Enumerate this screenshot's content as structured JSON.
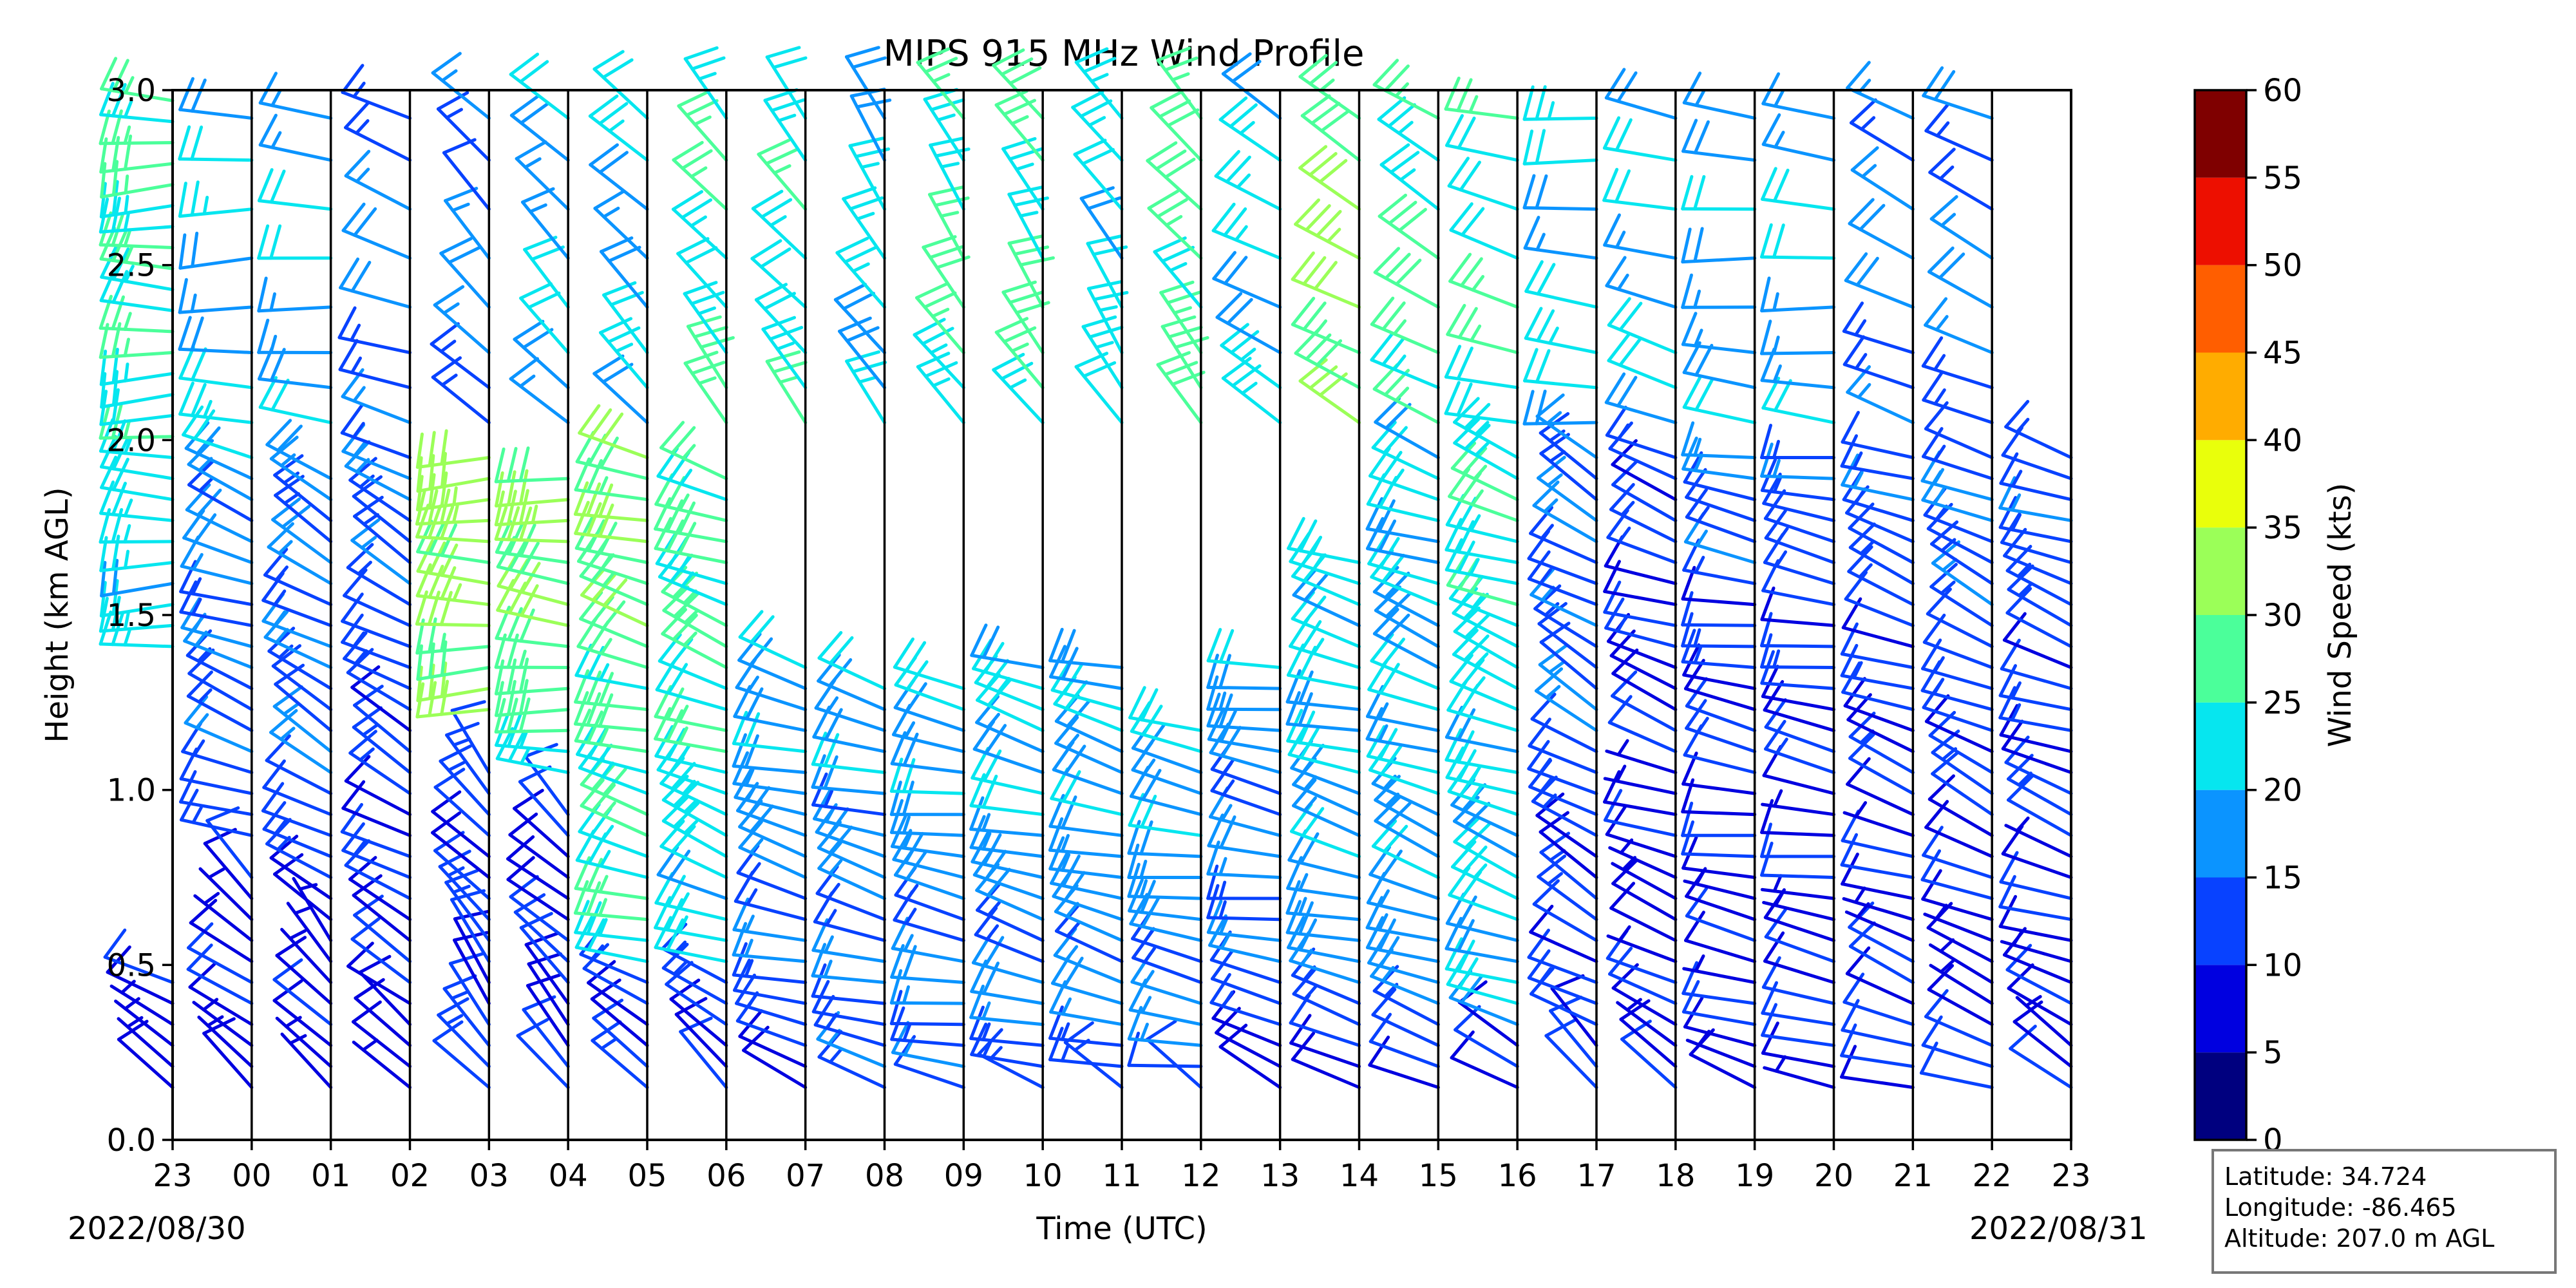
{
  "chart_data": {
    "type": "wind-barb",
    "title": "MIPS 915 MHz Wind Profile",
    "xlabel": "Time (UTC)",
    "ylabel": "Height (km AGL)",
    "x_tick_labels": [
      "23",
      "00",
      "01",
      "02",
      "03",
      "04",
      "05",
      "06",
      "07",
      "08",
      "09",
      "10",
      "11",
      "12",
      "13",
      "14",
      "15",
      "16",
      "17",
      "18",
      "19",
      "20",
      "21",
      "22",
      "23"
    ],
    "y_ticks": [
      0.0,
      0.5,
      1.0,
      1.5,
      2.0,
      2.5,
      3.0
    ],
    "y_tick_labels": [
      "0.0",
      "0.5",
      "1.0",
      "1.5",
      "2.0",
      "2.5",
      "3.0"
    ],
    "ylim": [
      0.0,
      3.0
    ],
    "start_date": "2022/08/30",
    "end_date": "2022/08/31",
    "colorbar": {
      "label": "Wind Speed (kts)",
      "ticks": [
        0,
        5,
        10,
        15,
        20,
        25,
        30,
        35,
        40,
        45,
        50,
        55,
        60
      ],
      "tick_labels": [
        "0",
        "5",
        "10",
        "15",
        "20",
        "25",
        "30",
        "35",
        "40",
        "45",
        "50",
        "55",
        "60"
      ],
      "colors": [
        "#00007f",
        "#0000e0",
        "#0842ff",
        "#0b94ff",
        "#06e6ef",
        "#4bff9a",
        "#9bff58",
        "#e9ff0b",
        "#ffac00",
        "#ff5e00",
        "#ed0f00",
        "#7f0000"
      ]
    },
    "site_info": [
      "Latitude: 34.724",
      "Longitude: -86.465",
      "Altitude: 207.0 m AGL"
    ],
    "profiles": [
      {
        "time": "23",
        "hi_bottom": 1.4,
        "hi_top": 3.0,
        "hi_speed": 24,
        "hi_dir": 270,
        "lo_top": 0.5,
        "lo_speed": 8,
        "lo_dir": 300
      },
      {
        "time": "00",
        "hi_bottom": 0.85,
        "hi_top": 2.0,
        "hi_speed": 15,
        "hi_dir": 290,
        "lo_top": 0.8,
        "lo_speed": 9,
        "lo_dir": 310,
        "up_speed": 20,
        "up_dir": 270
      },
      {
        "time": "01",
        "hi_bottom": 0.6,
        "hi_top": 1.9,
        "hi_speed": 14,
        "hi_dir": 300,
        "lo_top": 0.6,
        "lo_speed": 8,
        "lo_dir": 320,
        "up_speed": 18,
        "up_dir": 275
      },
      {
        "time": "02",
        "hi_bottom": 0.35,
        "hi_top": 2.0,
        "hi_speed": 12,
        "hi_dir": 300,
        "lo_top": 0.35,
        "lo_speed": 7,
        "lo_dir": 320,
        "up_speed": 16,
        "up_dir": 290
      },
      {
        "time": "03",
        "hi_bottom": 1.2,
        "hi_top": 2.0,
        "hi_speed": 31,
        "hi_dir": 270,
        "lo_top": 1.1,
        "lo_speed": 11,
        "lo_dir": 320,
        "up_speed": 15,
        "up_dir": 315
      },
      {
        "time": "04",
        "hi_bottom": 1.0,
        "hi_top": 1.9,
        "hi_speed": 29,
        "hi_dir": 275,
        "lo_top": 0.95,
        "lo_speed": 10,
        "lo_dir": 315,
        "up_speed": 19,
        "up_dir": 315
      },
      {
        "time": "05",
        "hi_bottom": 0.5,
        "hi_top": 2.0,
        "hi_speed": 27,
        "hi_dir": 285,
        "lo_top": 0.5,
        "lo_speed": 12,
        "lo_dir": 300,
        "up_speed": 20,
        "up_dir": 315
      },
      {
        "time": "06",
        "hi_bottom": 0.5,
        "hi_top": 1.9,
        "hi_speed": 24,
        "hi_dir": 290,
        "lo_top": 0.45,
        "lo_speed": 12,
        "lo_dir": 310,
        "up_speed": 25,
        "up_dir": 320
      },
      {
        "time": "07",
        "hi_bottom": 0.3,
        "hi_top": 1.4,
        "hi_speed": 17,
        "hi_dir": 285,
        "lo_top": 0.3,
        "lo_speed": 12,
        "lo_dir": 300,
        "up_speed": 23,
        "up_dir": 320
      },
      {
        "time": "08",
        "hi_bottom": 0.15,
        "hi_top": 1.3,
        "hi_speed": 16,
        "hi_dir": 285,
        "lo_top": 0.15,
        "lo_speed": 11,
        "lo_dir": 300,
        "up_speed": 22,
        "up_dir": 325
      },
      {
        "time": "09",
        "hi_bottom": 0.2,
        "hi_top": 1.3,
        "hi_speed": 17,
        "hi_dir": 280,
        "lo_top": 0.2,
        "lo_speed": 11,
        "lo_dir": 300,
        "up_speed": 26,
        "up_dir": 325
      },
      {
        "time": "10",
        "hi_bottom": 0.2,
        "hi_top": 1.4,
        "hi_speed": 18,
        "hi_dir": 285,
        "lo_top": 0.2,
        "lo_speed": 11,
        "lo_dir": 300,
        "up_speed": 26,
        "up_dir": 325
      },
      {
        "time": "11",
        "hi_bottom": 0.2,
        "hi_top": 1.4,
        "hi_speed": 18,
        "hi_dir": 285,
        "lo_top": 0.2,
        "lo_speed": 11,
        "lo_dir": 300,
        "up_speed": 22,
        "up_dir": 325
      },
      {
        "time": "12",
        "hi_bottom": 0.2,
        "hi_top": 1.2,
        "hi_speed": 17,
        "hi_dir": 280,
        "lo_top": 0.2,
        "lo_speed": 10,
        "lo_dir": 300,
        "up_speed": 27,
        "up_dir": 320
      },
      {
        "time": "13",
        "hi_bottom": 0.3,
        "hi_top": 1.4,
        "hi_speed": 16,
        "hi_dir": 280,
        "lo_top": 0.3,
        "lo_speed": 10,
        "lo_dir": 300,
        "up_speed": 22,
        "up_dir": 300
      },
      {
        "time": "14",
        "hi_bottom": 0.3,
        "hi_top": 1.7,
        "hi_speed": 19,
        "hi_dir": 285,
        "lo_top": 0.3,
        "lo_speed": 10,
        "lo_dir": 300,
        "up_speed": 30,
        "up_dir": 300
      },
      {
        "time": "15",
        "hi_bottom": 0.3,
        "hi_top": 2.0,
        "hi_speed": 19,
        "hi_dir": 290,
        "lo_top": 0.3,
        "lo_speed": 9,
        "lo_dir": 300,
        "up_speed": 26,
        "up_dir": 300
      },
      {
        "time": "16",
        "hi_bottom": 0.3,
        "hi_top": 2.0,
        "hi_speed": 22,
        "hi_dir": 290,
        "lo_top": 0.3,
        "lo_speed": 8,
        "lo_dir": 300,
        "up_speed": 23,
        "up_dir": 285
      },
      {
        "time": "17",
        "hi_bottom": 0.3,
        "hi_top": 2.0,
        "hi_speed": 13,
        "hi_dir": 300,
        "lo_top": 0.3,
        "lo_speed": 9,
        "lo_dir": 310,
        "up_speed": 20,
        "up_dir": 275
      },
      {
        "time": "18",
        "hi_bottom": 0.5,
        "hi_top": 2.0,
        "hi_speed": 10,
        "hi_dir": 290,
        "lo_top": 0.5,
        "lo_speed": 9,
        "lo_dir": 300,
        "up_speed": 19,
        "up_dir": 285
      },
      {
        "time": "19",
        "hi_bottom": 0.4,
        "hi_top": 2.0,
        "hi_speed": 11,
        "hi_dir": 280,
        "lo_top": 0.4,
        "lo_speed": 9,
        "lo_dir": 290,
        "up_speed": 18,
        "up_dir": 275
      },
      {
        "time": "20",
        "hi_bottom": 0.4,
        "hi_top": 2.0,
        "hi_speed": 11,
        "hi_dir": 280,
        "lo_top": 0.4,
        "lo_speed": 9,
        "lo_dir": 290,
        "up_speed": 18,
        "up_dir": 275
      },
      {
        "time": "21",
        "hi_bottom": 0.4,
        "hi_top": 2.0,
        "hi_speed": 11,
        "hi_dir": 290,
        "lo_top": 0.4,
        "lo_speed": 9,
        "lo_dir": 290,
        "up_speed": 16,
        "up_dir": 295
      },
      {
        "time": "22",
        "hi_bottom": 0.5,
        "hi_top": 2.0,
        "hi_speed": 12,
        "hi_dir": 295,
        "lo_top": 0.5,
        "lo_speed": 9,
        "lo_dir": 290,
        "up_speed": 16,
        "up_dir": 295
      },
      {
        "time": "23",
        "hi_bottom": 0.3,
        "hi_top": 2.0,
        "hi_speed": 11,
        "hi_dir": 290,
        "lo_top": 0.3,
        "lo_speed": 8,
        "lo_dir": 300
      }
    ]
  }
}
